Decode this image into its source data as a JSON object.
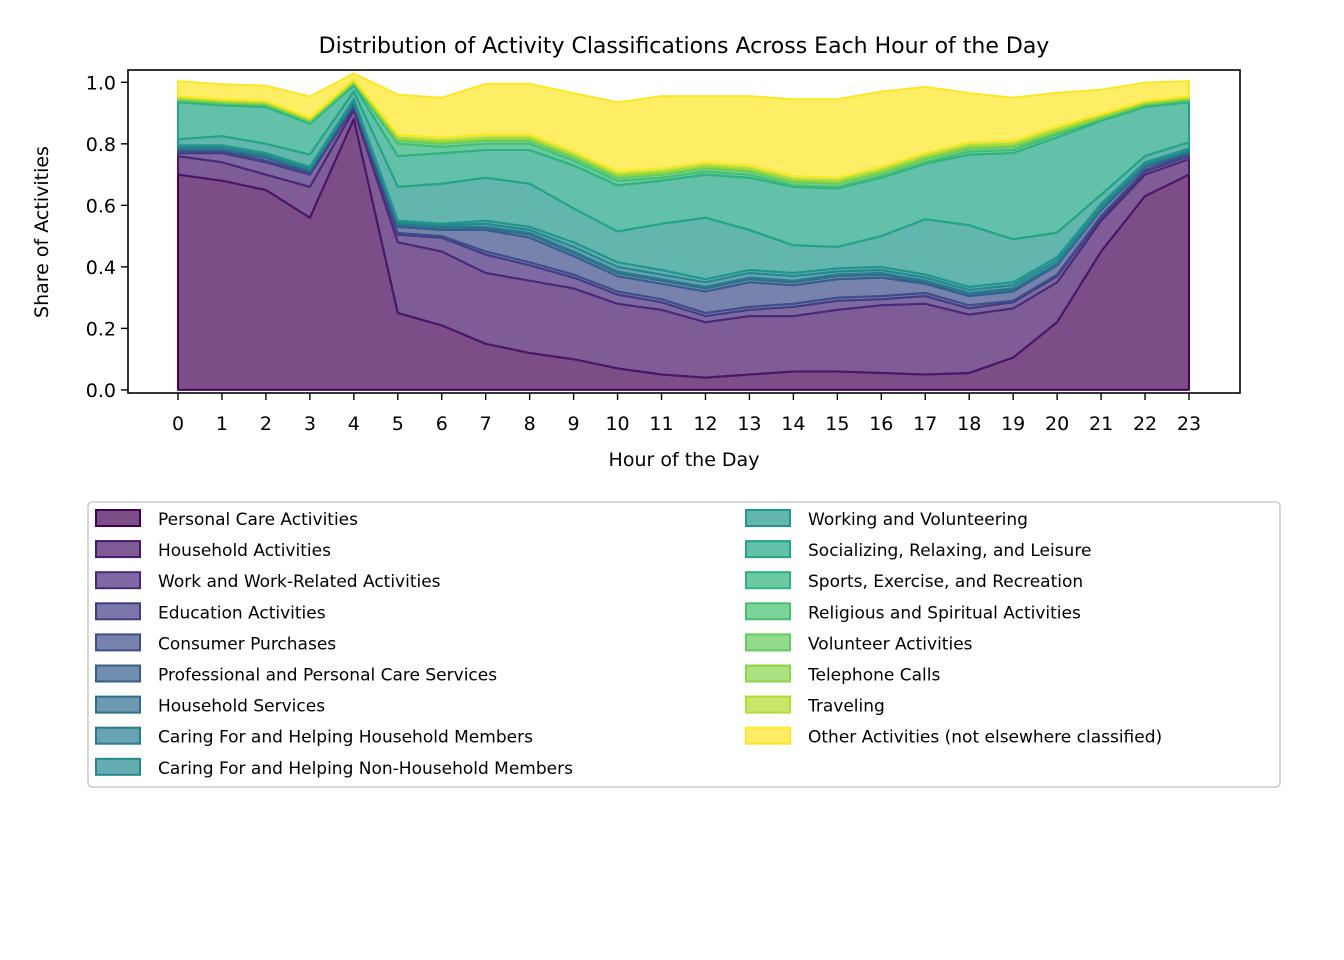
{
  "chart_data": {
    "type": "area",
    "stacked": true,
    "title": "Distribution of Activity Classifications Across Each Hour of the Day",
    "xlabel": "Hour of the Day",
    "ylabel": "Share of Activities",
    "x": [
      0,
      1,
      2,
      3,
      4,
      5,
      6,
      7,
      8,
      9,
      10,
      11,
      12,
      13,
      14,
      15,
      16,
      17,
      18,
      19,
      20,
      21,
      22,
      23
    ],
    "ylim": [
      0,
      1.05
    ],
    "yticks": [
      0.0,
      0.2,
      0.4,
      0.6,
      0.8,
      1.0
    ],
    "ytick_labels": [
      "0.0",
      "0.2",
      "0.4",
      "0.6",
      "0.8",
      "1.0"
    ],
    "grid": false,
    "legend_position": "below-plot",
    "legend_columns": 2,
    "series": [
      {
        "name": "Personal Care Activities",
        "color": "#440154",
        "values": [
          0.7,
          0.68,
          0.65,
          0.56,
          0.88,
          0.25,
          0.21,
          0.15,
          0.12,
          0.1,
          0.07,
          0.05,
          0.04,
          0.05,
          0.06,
          0.06,
          0.055,
          0.05,
          0.055,
          0.105,
          0.22,
          0.45,
          0.63,
          0.7
        ]
      },
      {
        "name": "Household Activities",
        "color": "#481769",
        "values": [
          0.06,
          0.06,
          0.05,
          0.1,
          0.03,
          0.23,
          0.24,
          0.23,
          0.235,
          0.23,
          0.21,
          0.21,
          0.18,
          0.19,
          0.18,
          0.2,
          0.22,
          0.23,
          0.19,
          0.16,
          0.13,
          0.1,
          0.07,
          0.05
        ]
      },
      {
        "name": "Work and Work-Related Activities",
        "color": "#472a7a",
        "values": [
          0.01,
          0.03,
          0.04,
          0.04,
          0.01,
          0.025,
          0.045,
          0.06,
          0.05,
          0.035,
          0.03,
          0.025,
          0.02,
          0.02,
          0.03,
          0.03,
          0.02,
          0.025,
          0.02,
          0.02,
          0.02,
          0.01,
          0.01,
          0.01
        ]
      },
      {
        "name": "Education Activities",
        "color": "#433d84",
        "values": [
          0.005,
          0.005,
          0.005,
          0.005,
          0.005,
          0.005,
          0.005,
          0.01,
          0.01,
          0.01,
          0.01,
          0.01,
          0.01,
          0.01,
          0.01,
          0.01,
          0.01,
          0.01,
          0.01,
          0.005,
          0.005,
          0.005,
          0.005,
          0.005
        ]
      },
      {
        "name": "Consumer Purchases",
        "color": "#3d4e8a",
        "values": [
          0.005,
          0.005,
          0.01,
          0.005,
          0.005,
          0.02,
          0.02,
          0.07,
          0.08,
          0.06,
          0.05,
          0.05,
          0.07,
          0.08,
          0.06,
          0.06,
          0.06,
          0.03,
          0.03,
          0.03,
          0.03,
          0.02,
          0.01,
          0.005
        ]
      },
      {
        "name": "Professional and Personal Care Services",
        "color": "#355e8d",
        "values": [
          0.003,
          0.003,
          0.003,
          0.003,
          0.003,
          0.005,
          0.005,
          0.005,
          0.01,
          0.01,
          0.01,
          0.01,
          0.01,
          0.01,
          0.01,
          0.01,
          0.01,
          0.005,
          0.005,
          0.005,
          0.003,
          0.003,
          0.003,
          0.003
        ]
      },
      {
        "name": "Household Services",
        "color": "#2e6d8e",
        "values": [
          0.003,
          0.003,
          0.003,
          0.003,
          0.003,
          0.005,
          0.005,
          0.005,
          0.005,
          0.005,
          0.005,
          0.005,
          0.005,
          0.005,
          0.005,
          0.005,
          0.005,
          0.005,
          0.005,
          0.005,
          0.003,
          0.003,
          0.003,
          0.003
        ]
      },
      {
        "name": "Caring For and Helping Household Members",
        "color": "#297b8e",
        "values": [
          0.004,
          0.004,
          0.004,
          0.004,
          0.004,
          0.005,
          0.005,
          0.01,
          0.01,
          0.015,
          0.015,
          0.015,
          0.015,
          0.015,
          0.015,
          0.01,
          0.01,
          0.01,
          0.01,
          0.01,
          0.01,
          0.004,
          0.004,
          0.004
        ]
      },
      {
        "name": "Caring For and Helping Non-Household Members",
        "color": "#23898e",
        "values": [
          0.005,
          0.005,
          0.005,
          0.005,
          0.005,
          0.005,
          0.005,
          0.01,
          0.01,
          0.015,
          0.015,
          0.015,
          0.01,
          0.01,
          0.01,
          0.01,
          0.01,
          0.01,
          0.01,
          0.01,
          0.01,
          0.01,
          0.005,
          0.005
        ]
      },
      {
        "name": "Working and Volunteering",
        "color": "#1f978b",
        "values": [
          0.02,
          0.03,
          0.03,
          0.04,
          0.025,
          0.11,
          0.13,
          0.14,
          0.14,
          0.11,
          0.1,
          0.15,
          0.2,
          0.13,
          0.09,
          0.07,
          0.1,
          0.18,
          0.2,
          0.14,
          0.08,
          0.03,
          0.02,
          0.02
        ]
      },
      {
        "name": "Socializing, Relaxing, and Leisure",
        "color": "#21a585",
        "values": [
          0.12,
          0.1,
          0.12,
          0.1,
          0.02,
          0.1,
          0.1,
          0.09,
          0.11,
          0.14,
          0.15,
          0.14,
          0.14,
          0.17,
          0.19,
          0.19,
          0.19,
          0.18,
          0.23,
          0.28,
          0.31,
          0.24,
          0.16,
          0.13
        ]
      },
      {
        "name": "Sports, Exercise, and Recreation",
        "color": "#2eb37c",
        "values": [
          0.005,
          0.005,
          0.005,
          0.005,
          0.005,
          0.04,
          0.02,
          0.02,
          0.02,
          0.015,
          0.015,
          0.01,
          0.01,
          0.01,
          0.005,
          0.005,
          0.005,
          0.005,
          0.01,
          0.01,
          0.01,
          0.005,
          0.005,
          0.005
        ]
      },
      {
        "name": "Religious and Spiritual Activities",
        "color": "#46c06f",
        "values": [
          0.003,
          0.003,
          0.003,
          0.003,
          0.003,
          0.01,
          0.01,
          0.01,
          0.01,
          0.01,
          0.01,
          0.01,
          0.01,
          0.01,
          0.01,
          0.01,
          0.01,
          0.01,
          0.01,
          0.01,
          0.005,
          0.003,
          0.003,
          0.003
        ]
      },
      {
        "name": "Volunteer Activities",
        "color": "#65cb5e",
        "values": [
          0.003,
          0.003,
          0.003,
          0.003,
          0.003,
          0.005,
          0.005,
          0.005,
          0.005,
          0.005,
          0.005,
          0.005,
          0.005,
          0.005,
          0.005,
          0.005,
          0.005,
          0.005,
          0.005,
          0.005,
          0.005,
          0.003,
          0.003,
          0.003
        ]
      },
      {
        "name": "Telephone Calls",
        "color": "#89d548",
        "values": [
          0.003,
          0.003,
          0.003,
          0.003,
          0.003,
          0.005,
          0.005,
          0.005,
          0.005,
          0.005,
          0.005,
          0.005,
          0.005,
          0.005,
          0.005,
          0.005,
          0.005,
          0.005,
          0.005,
          0.005,
          0.005,
          0.005,
          0.003,
          0.003
        ]
      },
      {
        "name": "Traveling",
        "color": "#b0dd2f",
        "values": [
          0.005,
          0.005,
          0.005,
          0.005,
          0.005,
          0.01,
          0.01,
          0.01,
          0.01,
          0.01,
          0.01,
          0.01,
          0.01,
          0.01,
          0.01,
          0.01,
          0.01,
          0.01,
          0.01,
          0.01,
          0.01,
          0.005,
          0.005,
          0.005
        ]
      },
      {
        "name": "Other Activities (not elsewhere classified)",
        "color": "#fde725",
        "values": [
          0.05,
          0.05,
          0.05,
          0.07,
          0.02,
          0.13,
          0.13,
          0.165,
          0.165,
          0.19,
          0.225,
          0.235,
          0.215,
          0.225,
          0.25,
          0.255,
          0.245,
          0.215,
          0.16,
          0.14,
          0.11,
          0.08,
          0.06,
          0.05
        ]
      }
    ]
  }
}
